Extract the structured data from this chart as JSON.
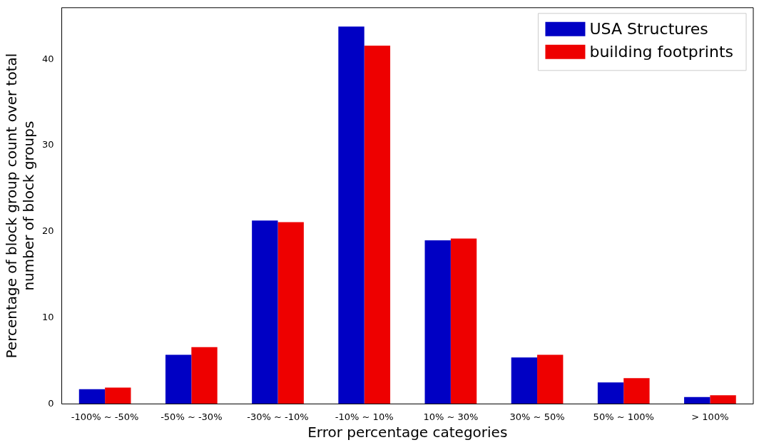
{
  "chart_data": {
    "type": "bar",
    "xlabel": "Error percentage categories",
    "ylabel": "Percentage of block group count over total number of block groups",
    "categories": [
      "-100% ~ -50%",
      "-50% ~ -30%",
      "-30% ~ -10%",
      "-10% ~ 10%",
      "10% ~ 30%",
      "30% ~ 50%",
      "50% ~ 100%",
      "> 100%"
    ],
    "series": [
      {
        "name": "USA Structures",
        "color": "#0000c4",
        "values": [
          1.7,
          5.7,
          21.3,
          43.8,
          19.0,
          5.4,
          2.5,
          0.8
        ]
      },
      {
        "name": "building footprints",
        "color": "#ee0000",
        "values": [
          1.9,
          6.6,
          21.1,
          41.6,
          19.2,
          5.7,
          3.0,
          1.0
        ]
      }
    ],
    "ylim": [
      0,
      46
    ],
    "yticks": [
      0,
      10,
      20,
      30,
      40
    ],
    "grid": false,
    "legend": "top right"
  }
}
